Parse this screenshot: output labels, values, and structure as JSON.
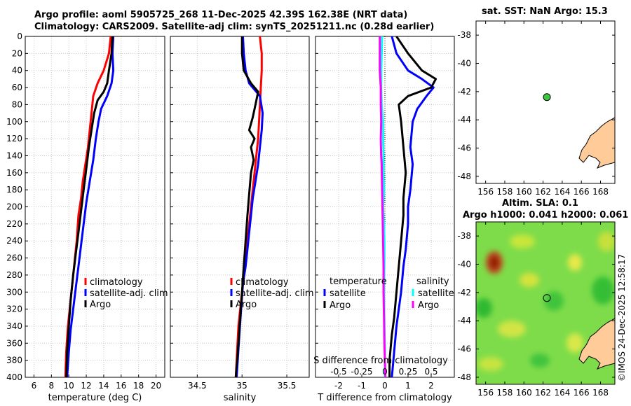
{
  "header": {
    "title_line1": "Argo profile: aoml 5905725_268 11-Dec-2025 42.39S 162.38E (NRT data)",
    "title_line2": "Climatology: CARS2009. Satellite-adj clim: synTS_20251211.nc (0.28d earlier)"
  },
  "sst_map": {
    "title": "sat. SST: NaN Argo: 15.3",
    "lon_ticks": [
      "156",
      "158",
      "160",
      "162",
      "164",
      "166",
      "168"
    ],
    "lat_ticks": [
      "-38",
      "-40",
      "-42",
      "-44",
      "-46",
      "-48"
    ],
    "argo_lon": 162.4,
    "argo_lat": -42.39,
    "marker_color": "#3cc83c",
    "land_color": "#ffcc99"
  },
  "sla_map": {
    "title_line1": "Altim. SLA: 0.1",
    "title_line2": "Argo h1000: 0.041 h2000: 0.061",
    "lon_ticks": [
      "156",
      "158",
      "160",
      "162",
      "164",
      "166",
      "168"
    ],
    "lat_ticks": [
      "-38",
      "-40",
      "-42",
      "-44",
      "-46",
      "-48"
    ],
    "argo_lon": 162.4,
    "argo_lat": -42.39
  },
  "stamp": "©IMOS 24-Dec-2025 12:58:17",
  "chart_data": [
    {
      "type": "line",
      "name": "temperature",
      "xlabel": "temperature (deg C)",
      "xlim": [
        5,
        21
      ],
      "ylim": [
        0,
        400
      ],
      "y_ticks": [
        0,
        20,
        40,
        60,
        80,
        100,
        120,
        140,
        160,
        180,
        200,
        220,
        240,
        260,
        280,
        300,
        320,
        340,
        360,
        380,
        400
      ],
      "x_ticks": [
        "6",
        "8",
        "10",
        "12",
        "14",
        "16",
        "18",
        "20"
      ],
      "x_tick_values": [
        6,
        8,
        10,
        12,
        14,
        16,
        18,
        20
      ],
      "series": [
        {
          "name": "climatology",
          "color": "#ff0000",
          "x": [
            14.8,
            14.6,
            14.0,
            13.3,
            12.8,
            12.6,
            12.4,
            12.2,
            11.9,
            11.6,
            11.4,
            11.1,
            10.9,
            10.7,
            10.5,
            10.3,
            10.1,
            9.9,
            9.7,
            9.6
          ],
          "y": [
            0,
            20,
            40,
            55,
            70,
            90,
            110,
            130,
            150,
            170,
            190,
            210,
            240,
            260,
            280,
            300,
            320,
            340,
            370,
            400
          ]
        },
        {
          "name": "satellite-adj. clim",
          "color": "#0000ff",
          "x": [
            15.1,
            15.0,
            15.1,
            14.9,
            14.4,
            13.7,
            13.4,
            13.1,
            12.8,
            12.4,
            12.0,
            11.7,
            11.4,
            11.1,
            10.8,
            10.5,
            10.2,
            10.0,
            9.8
          ],
          "y": [
            0,
            20,
            40,
            55,
            70,
            85,
            100,
            120,
            145,
            170,
            195,
            220,
            245,
            270,
            295,
            320,
            345,
            370,
            400
          ]
        },
        {
          "name": "Argo",
          "color": "#000000",
          "x": [
            15.0,
            14.9,
            14.6,
            14.4,
            14.0,
            13.3,
            12.9,
            12.6,
            12.3,
            12.0,
            11.7,
            11.4,
            11.1,
            10.8,
            10.5,
            10.2,
            10.0,
            9.8,
            9.7
          ],
          "y": [
            0,
            20,
            40,
            55,
            65,
            75,
            90,
            110,
            130,
            155,
            180,
            205,
            230,
            255,
            280,
            310,
            340,
            370,
            400
          ]
        }
      ],
      "legend": [
        "climatology",
        "satellite-adj. clim",
        "Argo"
      ]
    },
    {
      "type": "line",
      "name": "salinity",
      "xlabel": "salinity",
      "xlim": [
        34.2,
        35.75
      ],
      "ylim": [
        0,
        400
      ],
      "x_ticks": [
        "34.5",
        "35",
        "35.5"
      ],
      "x_tick_values": [
        34.5,
        35.0,
        35.5
      ],
      "series": [
        {
          "name": "climatology",
          "color": "#ff0000",
          "x": [
            35.2,
            35.22,
            35.22,
            35.21,
            35.2,
            35.19,
            35.18,
            35.16,
            35.14,
            35.12,
            35.1,
            35.08,
            35.06,
            35.04,
            35.02,
            35.0,
            34.98,
            34.96,
            34.93
          ],
          "y": [
            0,
            20,
            40,
            60,
            80,
            100,
            120,
            140,
            160,
            180,
            200,
            220,
            240,
            260,
            280,
            300,
            320,
            340,
            400
          ]
        },
        {
          "name": "satellite-adj. clim",
          "color": "#0000ff",
          "x": [
            35.01,
            35.02,
            35.04,
            35.08,
            35.2,
            35.23,
            35.22,
            35.2,
            35.18,
            35.15,
            35.12,
            35.1,
            35.08,
            35.06,
            35.04,
            35.01,
            34.99,
            34.97,
            34.94
          ],
          "y": [
            0,
            20,
            40,
            55,
            70,
            90,
            110,
            130,
            150,
            170,
            190,
            210,
            230,
            250,
            270,
            290,
            320,
            350,
            400
          ]
        },
        {
          "name": "Argo",
          "color": "#000000",
          "x": [
            35.0,
            35.0,
            35.02,
            35.1,
            35.18,
            35.15,
            35.12,
            35.08,
            35.14,
            35.1,
            35.13,
            35.1,
            35.08,
            35.06,
            35.04,
            35.02,
            35.0,
            34.98,
            34.96,
            34.93
          ],
          "y": [
            0,
            20,
            40,
            55,
            65,
            80,
            95,
            110,
            120,
            130,
            145,
            160,
            185,
            210,
            240,
            270,
            300,
            330,
            360,
            400
          ]
        }
      ],
      "legend": [
        "climatology",
        "satellite-adj. clim",
        "Argo"
      ]
    },
    {
      "type": "line",
      "name": "difference",
      "xlabel": "T difference from climatology",
      "top_xlabel": "S difference from climatology",
      "xlim": [
        -3,
        3
      ],
      "ylim": [
        0,
        400
      ],
      "x_ticks": [
        "-2",
        "-1",
        "0",
        "1",
        "2"
      ],
      "x_tick_values": [
        -2,
        -1,
        0,
        1,
        2
      ],
      "top_ticks": [
        "-0.5",
        "-0.25",
        "0",
        "0.25",
        "0.5"
      ],
      "top_tick_values": [
        -0.5,
        -0.25,
        0,
        0.25,
        0.5
      ],
      "s_scale": 4,
      "series": [
        {
          "name": "temperature satellite",
          "color": "#0000ff",
          "x": [
            0.3,
            0.5,
            1.0,
            1.6,
            2.1,
            1.8,
            1.4,
            1.2,
            1.1,
            1.2,
            1.1,
            1.0,
            1.0,
            0.9,
            0.8,
            0.7,
            0.6,
            0.5,
            0.4,
            0.3
          ],
          "y": [
            0,
            20,
            40,
            50,
            60,
            70,
            85,
            100,
            130,
            150,
            180,
            200,
            220,
            250,
            270,
            300,
            320,
            340,
            370,
            400
          ]
        },
        {
          "name": "temperature Argo",
          "color": "#000000",
          "x": [
            0.5,
            1.0,
            1.6,
            2.2,
            2.0,
            1.0,
            0.6,
            0.7,
            0.8,
            0.9,
            0.8,
            0.8,
            0.7,
            0.6,
            0.5,
            0.4,
            0.3,
            0.2,
            0.2
          ],
          "y": [
            0,
            20,
            40,
            50,
            60,
            70,
            80,
            100,
            130,
            160,
            190,
            210,
            240,
            270,
            300,
            330,
            350,
            380,
            400
          ]
        },
        {
          "name": "salinity satellite",
          "color": "#00ffff",
          "x": [
            -0.03,
            -0.035,
            -0.04,
            -0.04,
            -0.035,
            -0.02,
            -0.02,
            -0.015,
            -0.015,
            -0.01,
            -0.02,
            -0.01,
            -0.005,
            -0.005,
            -0.01,
            -0.005,
            0.0,
            0.0
          ],
          "y": [
            0,
            20,
            40,
            60,
            80,
            100,
            120,
            140,
            160,
            180,
            200,
            220,
            240,
            260,
            300,
            340,
            370,
            400
          ]
        },
        {
          "name": "salinity Argo",
          "color": "#ff00ff",
          "x": [
            -0.055,
            -0.055,
            -0.055,
            -0.045,
            -0.045,
            -0.04,
            -0.045,
            -0.04,
            -0.035,
            -0.03,
            -0.025,
            -0.02,
            -0.015,
            -0.015,
            -0.01,
            -0.005,
            0.0,
            0.005
          ],
          "y": [
            0,
            20,
            40,
            60,
            80,
            100,
            120,
            140,
            150,
            180,
            210,
            240,
            270,
            300,
            330,
            360,
            380,
            400
          ]
        }
      ],
      "legend_left_title": "temperature",
      "legend_left": [
        "satellite",
        "Argo"
      ],
      "legend_right_title": "salinity",
      "legend_right": [
        "satellite",
        "Argo"
      ]
    }
  ]
}
